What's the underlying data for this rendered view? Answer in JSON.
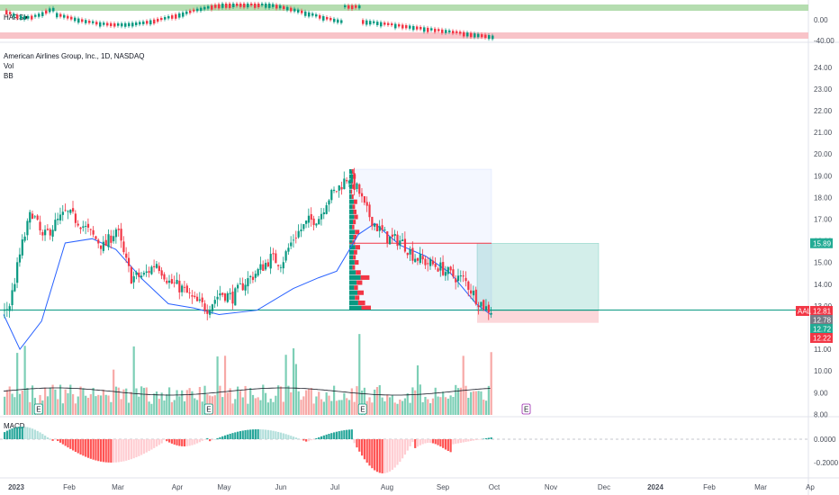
{
  "chart_data": {
    "type": "candlestick",
    "symbol_title": "American Airlines Group, Inc., 1D, NASDAQ",
    "ticker": "AAL",
    "indicator_labels": {
      "harsi": "HARSI",
      "vol": "Vol",
      "bb": "BB",
      "macd": "MACD"
    },
    "x_ticks": [
      "2023",
      "Feb",
      "Mar",
      "Apr",
      "May",
      "Jun",
      "Jul",
      "Aug",
      "Sep",
      "Oct",
      "Nov",
      "Dec",
      "2024",
      "Feb",
      "Mar",
      "Ap"
    ],
    "y_ticks": [
      "24.00",
      "23.00",
      "22.00",
      "21.00",
      "20.00",
      "19.00",
      "18.00",
      "17.00",
      "16.00",
      "15.00",
      "14.00",
      "13.00",
      "12.00",
      "11.00",
      "10.00",
      "9.00",
      "8.00"
    ],
    "harsi_ticks": [
      "0.00",
      "-40.00"
    ],
    "macd_ticks": [
      "0.0000",
      "-0.2000"
    ],
    "price_tags": [
      {
        "label": "15.89",
        "color": "#22ab94"
      },
      {
        "label": "12.81",
        "color": "#f23645",
        "ticker": true
      },
      {
        "label": "12.78",
        "color": "#787b86"
      },
      {
        "label": "12.72",
        "color": "#22ab94"
      },
      {
        "label": "12.22",
        "color": "#f23645"
      }
    ],
    "earnings_marker": "E",
    "colors": {
      "up": "#089981",
      "down": "#f23645",
      "bb": "#2962ff",
      "profit": "#22ab94",
      "loss": "#f23645"
    },
    "ylim": [
      8,
      24.5
    ],
    "price_path": [
      {
        "date": "2023-01-03",
        "close": 12.7
      },
      {
        "date": "2023-01-06",
        "close": 13.1
      },
      {
        "date": "2023-01-12",
        "close": 15.6
      },
      {
        "date": "2023-01-18",
        "close": 17.4
      },
      {
        "date": "2023-01-24",
        "close": 16.1
      },
      {
        "date": "2023-01-30",
        "close": 16.7
      },
      {
        "date": "2023-02-06",
        "close": 17.3
      },
      {
        "date": "2023-02-13",
        "close": 16.9
      },
      {
        "date": "2023-02-21",
        "close": 16.2
      },
      {
        "date": "2023-02-27",
        "close": 15.7
      },
      {
        "date": "2023-03-06",
        "close": 16.6
      },
      {
        "date": "2023-03-10",
        "close": 15.3
      },
      {
        "date": "2023-03-14",
        "close": 14.3
      },
      {
        "date": "2023-03-21",
        "close": 14.4
      },
      {
        "date": "2023-03-28",
        "close": 15.0
      },
      {
        "date": "2023-04-04",
        "close": 14.1
      },
      {
        "date": "2023-04-11",
        "close": 13.8
      },
      {
        "date": "2023-04-18",
        "close": 13.2
      },
      {
        "date": "2023-04-25",
        "close": 12.9
      },
      {
        "date": "2023-05-02",
        "close": 13.6
      },
      {
        "date": "2023-05-09",
        "close": 13.4
      },
      {
        "date": "2023-05-16",
        "close": 14.1
      },
      {
        "date": "2023-05-23",
        "close": 14.6
      },
      {
        "date": "2023-05-30",
        "close": 15.2
      },
      {
        "date": "2023-06-05",
        "close": 15.0
      },
      {
        "date": "2023-06-12",
        "close": 16.2
      },
      {
        "date": "2023-06-20",
        "close": 16.9
      },
      {
        "date": "2023-06-26",
        "close": 17.1
      },
      {
        "date": "2023-06-30",
        "close": 17.9
      },
      {
        "date": "2023-07-06",
        "close": 18.4
      },
      {
        "date": "2023-07-12",
        "close": 19.0
      },
      {
        "date": "2023-07-18",
        "close": 18.2
      },
      {
        "date": "2023-07-21",
        "close": 17.5
      },
      {
        "date": "2023-07-27",
        "close": 16.7
      },
      {
        "date": "2023-08-03",
        "close": 16.1
      },
      {
        "date": "2023-08-10",
        "close": 16.0
      },
      {
        "date": "2023-08-17",
        "close": 15.3
      },
      {
        "date": "2023-08-24",
        "close": 15.0
      },
      {
        "date": "2023-08-31",
        "close": 14.8
      },
      {
        "date": "2023-09-07",
        "close": 14.4
      },
      {
        "date": "2023-09-14",
        "close": 14.2
      },
      {
        "date": "2023-09-21",
        "close": 13.3
      },
      {
        "date": "2023-09-26",
        "close": 12.9
      },
      {
        "date": "2023-09-29",
        "close": 12.8
      }
    ],
    "bb_path": [
      {
        "date": "2023-01-03",
        "value": 12.6
      },
      {
        "date": "2023-01-12",
        "value": 11.0
      },
      {
        "date": "2023-01-24",
        "value": 12.3
      },
      {
        "date": "2023-02-06",
        "value": 15.9
      },
      {
        "date": "2023-02-21",
        "value": 16.1
      },
      {
        "date": "2023-03-06",
        "value": 15.6
      },
      {
        "date": "2023-03-21",
        "value": 14.2
      },
      {
        "date": "2023-04-04",
        "value": 13.1
      },
      {
        "date": "2023-04-18",
        "value": 12.9
      },
      {
        "date": "2023-05-02",
        "value": 12.6
      },
      {
        "date": "2023-05-23",
        "value": 12.8
      },
      {
        "date": "2023-06-12",
        "value": 13.8
      },
      {
        "date": "2023-06-26",
        "value": 14.3
      },
      {
        "date": "2023-07-06",
        "value": 14.6
      },
      {
        "date": "2023-07-18",
        "value": 16.3
      },
      {
        "date": "2023-07-27",
        "value": 16.8
      },
      {
        "date": "2023-08-10",
        "value": 15.8
      },
      {
        "date": "2023-08-24",
        "value": 15.3
      },
      {
        "date": "2023-09-07",
        "value": 14.5
      },
      {
        "date": "2023-09-21",
        "value": 13.1
      },
      {
        "date": "2023-09-29",
        "value": 12.6
      }
    ],
    "long_position": {
      "entry": 12.78,
      "target": 15.89,
      "stop": 12.22
    },
    "horizontal_lines": [
      12.81,
      15.89
    ]
  }
}
